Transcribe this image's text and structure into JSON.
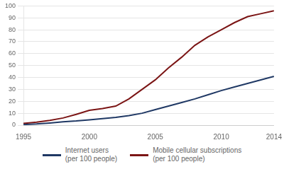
{
  "chart_data": {
    "type": "line",
    "x": [
      1995,
      1996,
      1997,
      1998,
      1999,
      2000,
      2001,
      2002,
      2003,
      2004,
      2005,
      2006,
      2007,
      2008,
      2009,
      2010,
      2011,
      2012,
      2013,
      2014
    ],
    "series": [
      {
        "name": "Internet users\n(per 100 people)",
        "color": "#1f3864",
        "values": [
          0.5,
          1.0,
          1.8,
          2.8,
          3.5,
          4.5,
          5.5,
          6.5,
          8.0,
          10.0,
          13.0,
          16.0,
          19.0,
          22.0,
          25.5,
          29.0,
          32.0,
          35.0,
          38.0,
          41.0
        ]
      },
      {
        "name": "Mobile cellular subscriptions\n(per 100 people)",
        "color": "#7b1515",
        "values": [
          1.5,
          2.5,
          4.0,
          6.0,
          9.0,
          12.5,
          14.0,
          16.0,
          22.0,
          30.0,
          38.0,
          48.0,
          57.0,
          67.0,
          74.0,
          80.0,
          86.0,
          91.0,
          93.5,
          96.0
        ]
      }
    ],
    "xlim": [
      1995,
      2014
    ],
    "ylim": [
      0,
      100
    ],
    "xticks": [
      1995,
      2000,
      2005,
      2010,
      2014
    ],
    "yticks": [
      0,
      10,
      20,
      30,
      40,
      50,
      60,
      70,
      80,
      90,
      100
    ],
    "grid": true,
    "legend": "bottom"
  }
}
